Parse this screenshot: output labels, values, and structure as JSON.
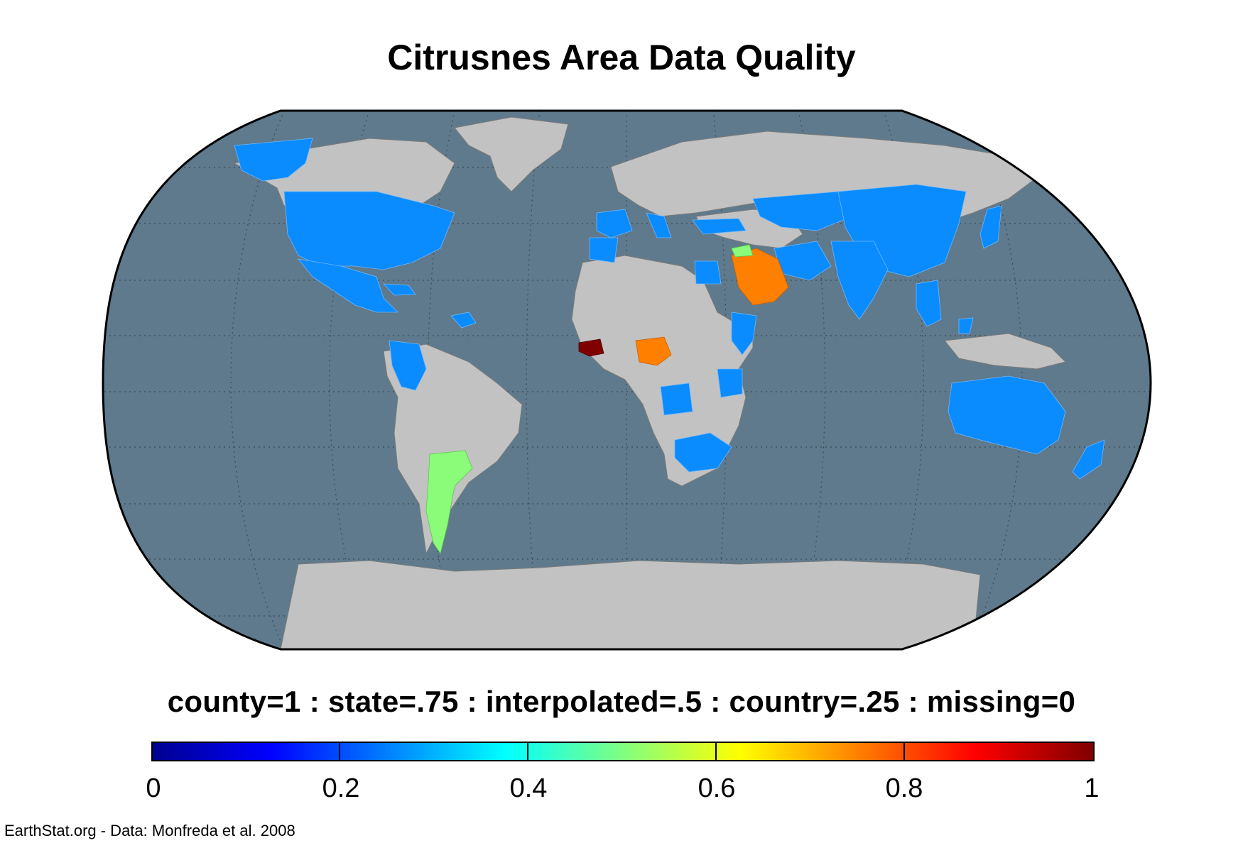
{
  "title": "Citrusnes Area Data Quality",
  "legend_description": "county=1 : state=.75 : interpolated=.5 : country=.25 : missing=0",
  "colorbar": {
    "colormap": "jet",
    "range": [
      0,
      1
    ],
    "ticks": [
      {
        "value": 0,
        "label": "0"
      },
      {
        "value": 0.2,
        "label": "0.2"
      },
      {
        "value": 0.4,
        "label": "0.4"
      },
      {
        "value": 0.6,
        "label": "0.6"
      },
      {
        "value": 0.8,
        "label": "0.8"
      },
      {
        "value": 1,
        "label": "1"
      }
    ]
  },
  "credit": "EarthStat.org - Data: Monfreda et al. 2008",
  "map": {
    "projection": "Robinson",
    "ocean_color": "#5f7a8c",
    "land_missing_color": "#c2c2c2",
    "graticule": true,
    "regions": [
      {
        "name": "United States",
        "quality": 0.25,
        "color": "#0a8cff"
      },
      {
        "name": "Mexico",
        "quality": 0.25,
        "color": "#0a8cff"
      },
      {
        "name": "Argentina",
        "quality": 0.5,
        "color": "#8afc7a"
      },
      {
        "name": "Guinea",
        "quality": 1,
        "color": "#7f0000"
      },
      {
        "name": "Nigeria",
        "quality": 0.75,
        "color": "#ff7f00"
      },
      {
        "name": "Saudi Arabia",
        "quality": 0.75,
        "color": "#ff7f00"
      },
      {
        "name": "China",
        "quality": 0.25,
        "color": "#0a8cff"
      },
      {
        "name": "India",
        "quality": 0.25,
        "color": "#0a8cff"
      },
      {
        "name": "Australia",
        "quality": 0.25,
        "color": "#0a8cff"
      },
      {
        "name": "South Africa",
        "quality": 0.25,
        "color": "#0a8cff"
      }
    ]
  }
}
